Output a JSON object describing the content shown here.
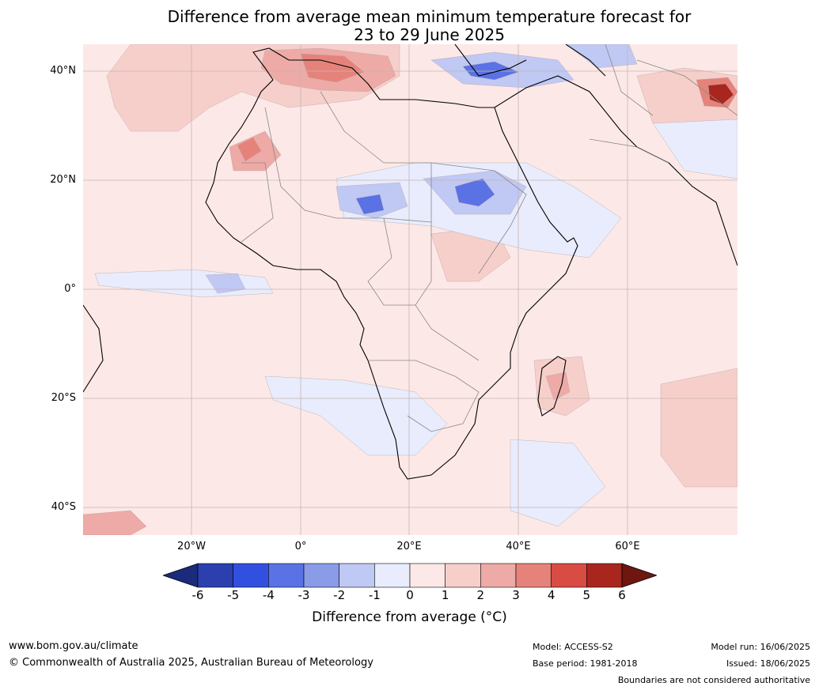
{
  "title": {
    "line1": "Difference from average mean minimum temperature forecast for",
    "line2": "23 to 29 June 2025"
  },
  "map": {
    "lat_labels": [
      "40°N",
      "20°N",
      "0°",
      "20°S",
      "40°S"
    ],
    "lon_labels": [
      "20°W",
      "0°",
      "20°E",
      "40°E",
      "60°E"
    ],
    "colors": {
      "ocean_base": "#fce9e7",
      "grid": "#c4b4b4",
      "coast": "#000000",
      "border": "#888888"
    }
  },
  "colorbar": {
    "ticks": [
      "-6",
      "-5",
      "-4",
      "-3",
      "-2",
      "-1",
      "0",
      "1",
      "2",
      "3",
      "4",
      "5",
      "6"
    ],
    "colors": [
      "#1b2a7a",
      "#2b3faf",
      "#3250e0",
      "#5a72e4",
      "#8a9be8",
      "#c0c8f4",
      "#e8ecfc",
      "#fce9e7",
      "#f6cfcb",
      "#eeaaa6",
      "#e5837b",
      "#d84c44",
      "#a8261e",
      "#6e1610"
    ],
    "label": "Difference from average ($^\\circ$C)",
    "label_display": "Difference from average (°C)"
  },
  "footer": {
    "website": "www.bom.gov.au/climate",
    "copyright": "© Commonwealth of Australia 2025, Australian Bureau of Meteorology",
    "model": "Model: ACCESS-S2",
    "base_period": "Base period: 1981-2018",
    "model_run": "Model run: 16/06/2025",
    "issued": "Issued: 18/06/2025",
    "disclaimer": "Boundaries are not considered authoritative"
  }
}
